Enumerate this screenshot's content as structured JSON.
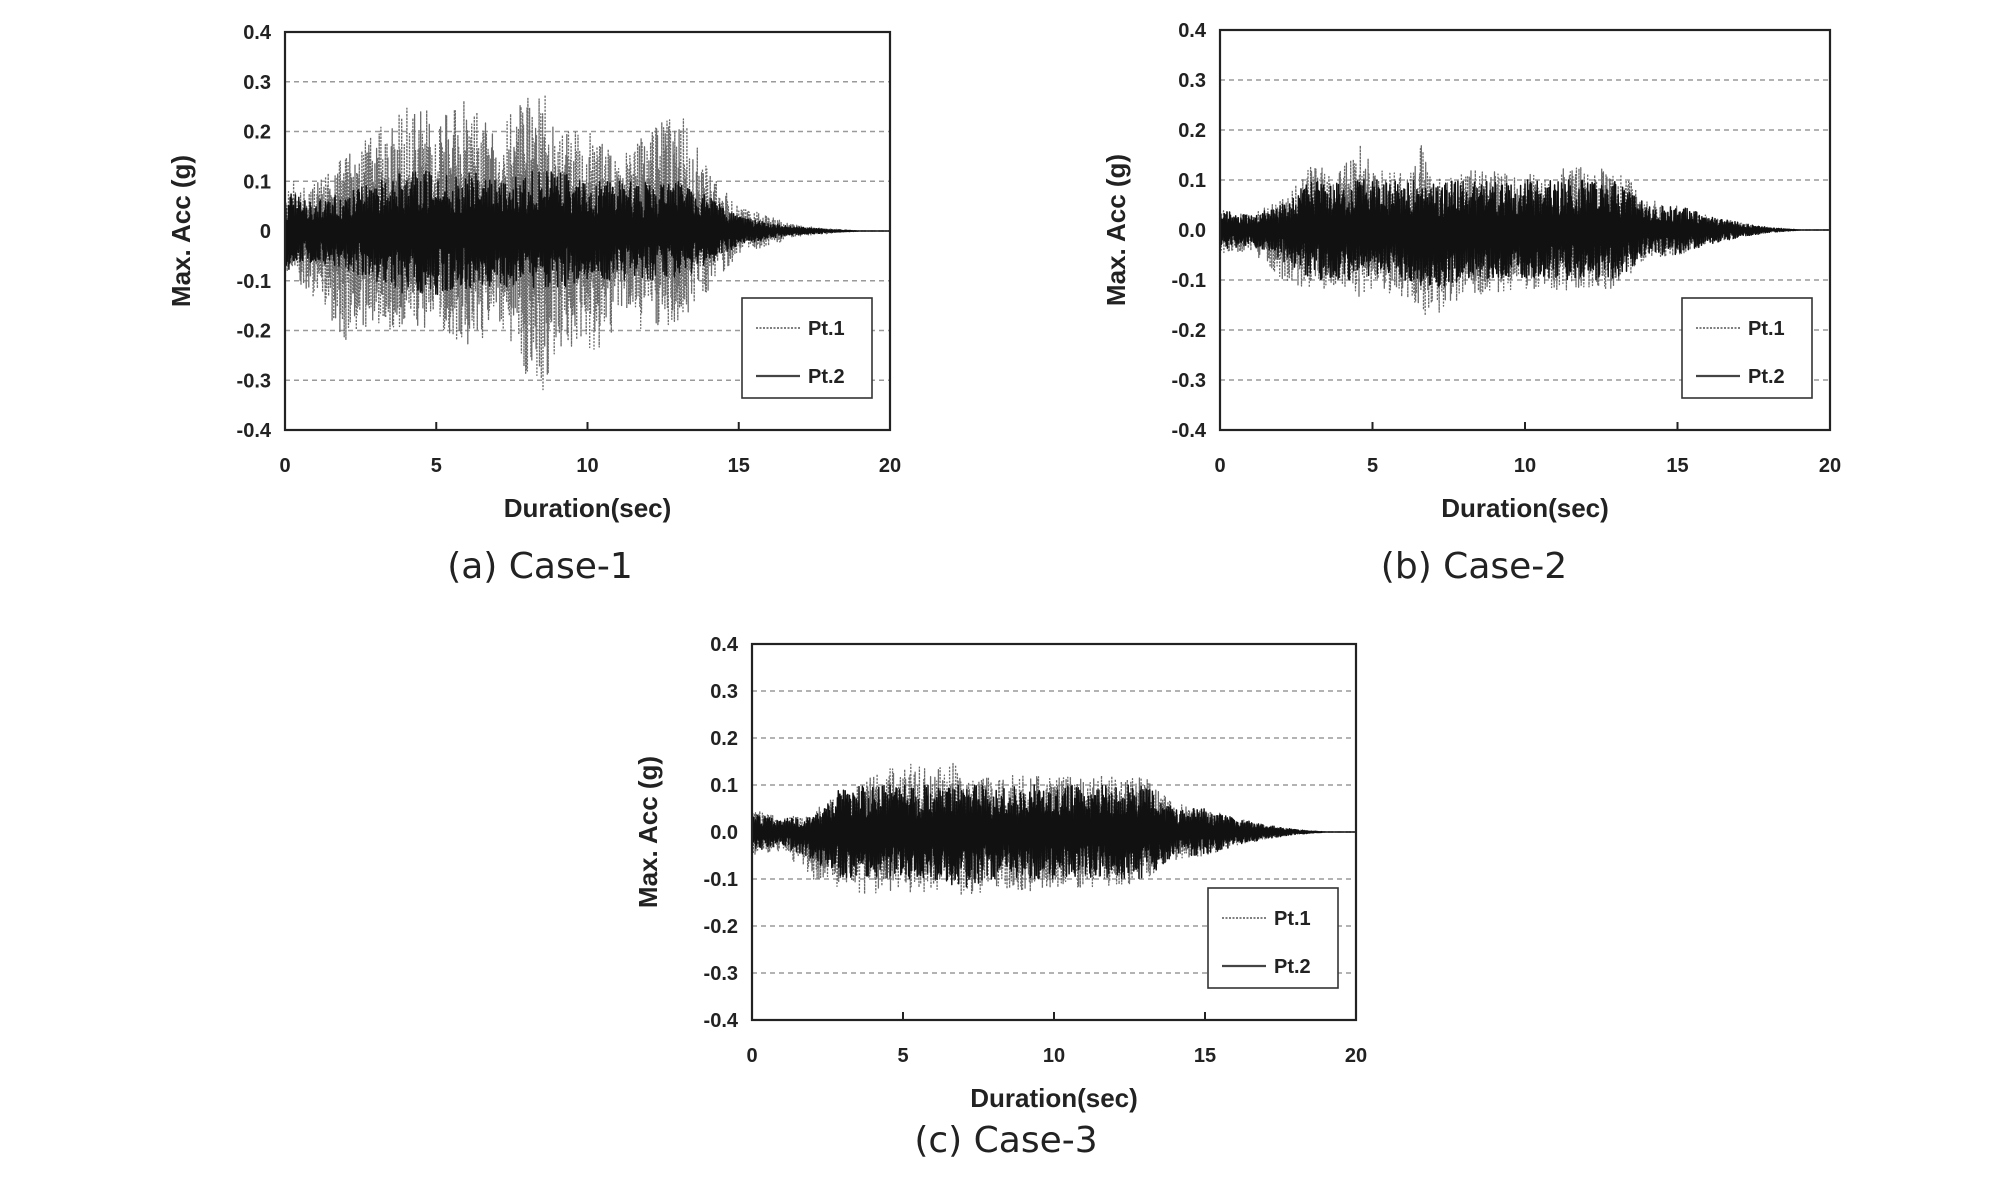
{
  "chart_data": [
    {
      "type": "line",
      "caption": "(a) Case-1",
      "xlabel": "Duration(sec)",
      "ylabel": "Max. Acc (g)",
      "xlim": [
        0,
        20
      ],
      "ylim": [
        -0.4,
        0.4
      ],
      "x_ticks": [
        "0",
        "5",
        "10",
        "15",
        "20"
      ],
      "y_ticks": [
        "0.4",
        "0.3",
        "0.2",
        "0.1",
        "0",
        "-0.1",
        "-0.2",
        "-0.3",
        "-0.4"
      ],
      "grid": "horizontal dashed",
      "legend_position": "bottom-right",
      "series": [
        {
          "name": "Pt.1",
          "style": "dotted",
          "x": [
            0,
            1,
            2,
            3,
            4,
            5,
            6,
            7,
            8,
            8.6,
            9,
            10,
            11,
            12,
            13,
            14,
            15,
            16,
            17,
            18,
            19,
            20
          ],
          "y_max": [
            0.1,
            0.1,
            0.15,
            0.2,
            0.25,
            0.24,
            0.27,
            0.2,
            0.28,
            0.29,
            0.2,
            0.2,
            0.15,
            0.2,
            0.25,
            0.12,
            0.05,
            0.03,
            0.01,
            0.005,
            0,
            0
          ],
          "y_min": [
            -0.1,
            -0.14,
            -0.22,
            -0.2,
            -0.2,
            -0.2,
            -0.24,
            -0.2,
            -0.3,
            -0.33,
            -0.25,
            -0.26,
            -0.2,
            -0.2,
            -0.2,
            -0.12,
            -0.05,
            -0.03,
            -0.01,
            -0.005,
            0,
            0
          ]
        },
        {
          "name": "Pt.2",
          "style": "solid",
          "x": [
            0,
            1,
            2,
            3,
            4,
            5,
            6,
            7,
            8,
            9,
            10,
            11,
            12,
            13,
            14,
            15,
            16,
            17,
            18,
            19,
            20
          ],
          "y_max": [
            0.08,
            0.06,
            0.08,
            0.1,
            0.12,
            0.12,
            0.12,
            0.11,
            0.12,
            0.12,
            0.1,
            0.1,
            0.1,
            0.1,
            0.07,
            0.03,
            0.015,
            0.008,
            0.003,
            0,
            0
          ],
          "y_min": [
            -0.08,
            -0.06,
            -0.08,
            -0.1,
            -0.13,
            -0.13,
            -0.12,
            -0.11,
            -0.12,
            -0.12,
            -0.1,
            -0.1,
            -0.1,
            -0.1,
            -0.07,
            -0.03,
            -0.015,
            -0.008,
            -0.003,
            0,
            0
          ]
        }
      ]
    },
    {
      "type": "line",
      "caption": "(b) Case-2",
      "xlabel": "Duration(sec)",
      "ylabel": "Max. Acc (g)",
      "xlim": [
        0,
        20
      ],
      "ylim": [
        -0.4,
        0.4
      ],
      "x_ticks": [
        "0",
        "5",
        "10",
        "15",
        "20"
      ],
      "y_ticks": [
        "0.4",
        "0.3",
        "0.2",
        "0.1",
        "0.0",
        "-0.1",
        "-0.2",
        "-0.3",
        "-0.4"
      ],
      "grid": "horizontal dashed",
      "legend_position": "bottom-right",
      "series": [
        {
          "name": "Pt.1",
          "style": "dotted",
          "x": [
            0,
            1,
            2,
            3,
            4,
            4.6,
            5,
            6,
            6.6,
            7,
            8,
            9,
            10,
            11,
            12,
            13,
            14,
            15,
            16,
            17,
            18,
            19,
            20
          ],
          "y_max": [
            0.05,
            0.03,
            0.06,
            0.13,
            0.12,
            0.18,
            0.12,
            0.12,
            0.17,
            0.1,
            0.12,
            0.12,
            0.11,
            0.12,
            0.13,
            0.13,
            0.06,
            0.05,
            0.03,
            0.015,
            0.005,
            0,
            0
          ],
          "y_min": [
            -0.05,
            -0.04,
            -0.1,
            -0.12,
            -0.12,
            -0.14,
            -0.12,
            -0.14,
            -0.17,
            -0.18,
            -0.13,
            -0.13,
            -0.12,
            -0.12,
            -0.12,
            -0.12,
            -0.06,
            -0.05,
            -0.03,
            -0.015,
            -0.005,
            0,
            0
          ]
        },
        {
          "name": "Pt.2",
          "style": "solid",
          "x": [
            0,
            1,
            2,
            3,
            4,
            5,
            6,
            7,
            8,
            9,
            10,
            11,
            12,
            13,
            14,
            15,
            16,
            17,
            18,
            19,
            20
          ],
          "y_max": [
            0.04,
            0.03,
            0.05,
            0.1,
            0.1,
            0.1,
            0.1,
            0.1,
            0.1,
            0.1,
            0.1,
            0.1,
            0.1,
            0.1,
            0.05,
            0.05,
            0.03,
            0.015,
            0.005,
            0,
            0
          ],
          "y_min": [
            -0.04,
            -0.03,
            -0.06,
            -0.1,
            -0.1,
            -0.1,
            -0.1,
            -0.12,
            -0.1,
            -0.1,
            -0.1,
            -0.1,
            -0.1,
            -0.1,
            -0.05,
            -0.05,
            -0.03,
            -0.015,
            -0.005,
            0,
            0
          ]
        }
      ]
    },
    {
      "type": "line",
      "caption": "(c) Case-3",
      "xlabel": "Duration(sec)",
      "ylabel": "Max. Acc (g)",
      "xlim": [
        0,
        20
      ],
      "ylim": [
        -0.4,
        0.4
      ],
      "x_ticks": [
        "0",
        "5",
        "10",
        "15",
        "20"
      ],
      "y_ticks": [
        "0.4",
        "0.3",
        "0.2",
        "0.1",
        "0.0",
        "-0.1",
        "-0.2",
        "-0.3",
        "-0.4"
      ],
      "grid": "horizontal dashed",
      "legend_position": "bottom-right",
      "series": [
        {
          "name": "Pt.1",
          "style": "dotted",
          "x": [
            0,
            1,
            2,
            3,
            4,
            5,
            6,
            6.7,
            7,
            8,
            9,
            10,
            11,
            12,
            13,
            14,
            15,
            16,
            17,
            18,
            19,
            20
          ],
          "y_max": [
            0.05,
            0.03,
            0.04,
            0.1,
            0.12,
            0.15,
            0.13,
            0.15,
            0.12,
            0.12,
            0.12,
            0.12,
            0.12,
            0.12,
            0.12,
            0.06,
            0.05,
            0.03,
            0.015,
            0.005,
            0,
            0
          ],
          "y_min": [
            -0.05,
            -0.04,
            -0.1,
            -0.12,
            -0.14,
            -0.13,
            -0.13,
            -0.12,
            -0.14,
            -0.12,
            -0.13,
            -0.12,
            -0.12,
            -0.12,
            -0.1,
            -0.06,
            -0.05,
            -0.03,
            -0.015,
            -0.005,
            0,
            0
          ]
        },
        {
          "name": "Pt.2",
          "style": "solid",
          "x": [
            0,
            1,
            2,
            3,
            4,
            5,
            6,
            7,
            8,
            9,
            10,
            11,
            12,
            13,
            14,
            15,
            16,
            17,
            18,
            19,
            20
          ],
          "y_max": [
            0.04,
            0.03,
            0.03,
            0.1,
            0.1,
            0.1,
            0.1,
            0.1,
            0.1,
            0.1,
            0.1,
            0.1,
            0.1,
            0.1,
            0.05,
            0.05,
            0.03,
            0.015,
            0.005,
            0,
            0
          ],
          "y_min": [
            -0.04,
            -0.03,
            -0.06,
            -0.1,
            -0.1,
            -0.1,
            -0.1,
            -0.12,
            -0.1,
            -0.1,
            -0.1,
            -0.1,
            -0.1,
            -0.1,
            -0.05,
            -0.05,
            -0.03,
            -0.015,
            -0.005,
            0,
            0
          ]
        }
      ]
    }
  ]
}
